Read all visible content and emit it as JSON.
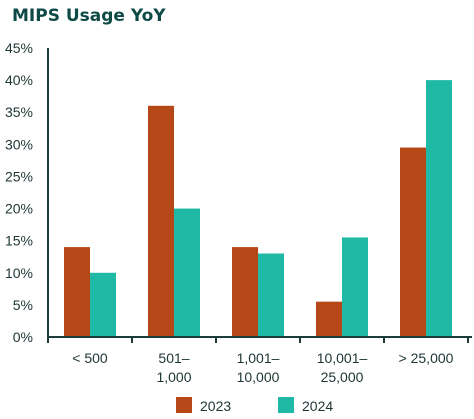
{
  "chart_data": {
    "type": "bar",
    "title": "MIPS Usage YoY",
    "categories": [
      [
        "< 500"
      ],
      [
        "501–",
        "1,000"
      ],
      [
        "1,001–",
        "10,000"
      ],
      [
        "10,001–",
        "25,000"
      ],
      [
        "> 25,000"
      ]
    ],
    "series": [
      {
        "name": "2023",
        "values": [
          14,
          36,
          14,
          5.5,
          29.5
        ]
      },
      {
        "name": "2024",
        "values": [
          10,
          20,
          13,
          15.5,
          40
        ]
      }
    ],
    "xlabel": "",
    "ylabel": "",
    "ylim": [
      0,
      45
    ],
    "yticks": [
      "0%",
      "5%",
      "10%",
      "15%",
      "20%",
      "25%",
      "30%",
      "35%",
      "40%",
      "45%"
    ],
    "grid": false,
    "legend": "bottom"
  },
  "colors": {
    "series_2023": "#b54816",
    "series_2024": "#1fb9a6",
    "title": "#0e4a45",
    "axis": "#1a3c3a",
    "text": "#1d3634"
  }
}
